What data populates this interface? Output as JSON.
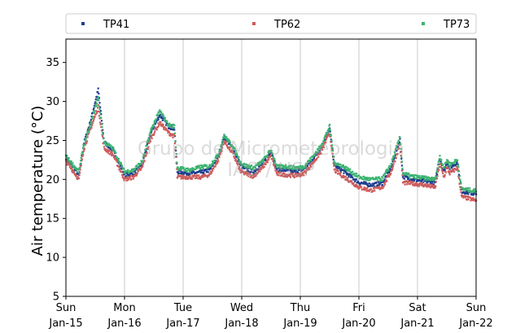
{
  "chart_data": {
    "type": "scatter",
    "ylabel": "Air temperature (°C)",
    "ylim": [
      5,
      38
    ],
    "yticks": [
      5,
      10,
      15,
      20,
      25,
      30,
      35
    ],
    "xlim": [
      0,
      7
    ],
    "xticks": [
      {
        "x": 0,
        "day": "Sun",
        "date": "Jan-15"
      },
      {
        "x": 1,
        "day": "Mon",
        "date": "Jan-16"
      },
      {
        "x": 2,
        "day": "Tue",
        "date": "Jan-17"
      },
      {
        "x": 3,
        "day": "Wed",
        "date": "Jan-18"
      },
      {
        "x": 4,
        "day": "Thu",
        "date": "Jan-19"
      },
      {
        "x": 5,
        "day": "Fri",
        "date": "Jan-20"
      },
      {
        "x": 6,
        "day": "Sat",
        "date": "Jan-21"
      },
      {
        "x": 7,
        "day": "Sun",
        "date": "Jan-22"
      }
    ],
    "grid": "vertical",
    "legend_position": "top",
    "watermark": [
      "Grupo de Micrometeorologia",
      "IAG / USP"
    ],
    "series": [
      {
        "name": "TP41",
        "color": "#1f3f8f",
        "points": [
          [
            0,
            22.8
          ],
          [
            0.15,
            21.3
          ],
          [
            0.22,
            20.5
          ],
          [
            0.3,
            24.5
          ],
          [
            0.42,
            27.5
          ],
          [
            0.55,
            31.5
          ],
          [
            0.65,
            24.8
          ],
          [
            0.8,
            23.8
          ],
          [
            1.0,
            20.6
          ],
          [
            1.15,
            20.7
          ],
          [
            1.3,
            22.0
          ],
          [
            1.45,
            26.0
          ],
          [
            1.6,
            28.3
          ],
          [
            1.75,
            26.8
          ],
          [
            1.85,
            26.5
          ],
          [
            1.9,
            21.0
          ],
          [
            2.1,
            20.8
          ],
          [
            2.3,
            20.9
          ],
          [
            2.45,
            21.2
          ],
          [
            2.6,
            23.0
          ],
          [
            2.7,
            25.5
          ],
          [
            2.85,
            24.0
          ],
          [
            2.98,
            21.8
          ],
          [
            3.05,
            21.4
          ],
          [
            3.2,
            21.0
          ],
          [
            3.35,
            22.0
          ],
          [
            3.5,
            23.6
          ],
          [
            3.6,
            21.3
          ],
          [
            3.75,
            21.2
          ],
          [
            3.9,
            21.0
          ],
          [
            4.05,
            21.3
          ],
          [
            4.2,
            22.5
          ],
          [
            4.35,
            24.0
          ],
          [
            4.5,
            26.5
          ],
          [
            4.58,
            21.8
          ],
          [
            4.75,
            21.0
          ],
          [
            5.0,
            19.6
          ],
          [
            5.2,
            19.3
          ],
          [
            5.4,
            19.5
          ],
          [
            5.55,
            21.5
          ],
          [
            5.7,
            25.2
          ],
          [
            5.75,
            20.4
          ],
          [
            5.9,
            20.0
          ],
          [
            6.1,
            19.8
          ],
          [
            6.3,
            19.6
          ],
          [
            6.38,
            22.8
          ],
          [
            6.45,
            21.0
          ],
          [
            6.5,
            22.2
          ],
          [
            6.55,
            21.5
          ],
          [
            6.68,
            22.2
          ],
          [
            6.75,
            18.5
          ],
          [
            7.0,
            18.1
          ]
        ]
      },
      {
        "name": "TP62",
        "color": "#cd5c5c",
        "points": [
          [
            0,
            22.3
          ],
          [
            0.15,
            20.8
          ],
          [
            0.22,
            20.0
          ],
          [
            0.3,
            23.8
          ],
          [
            0.42,
            26.5
          ],
          [
            0.55,
            29.3
          ],
          [
            0.65,
            24.0
          ],
          [
            0.8,
            23.2
          ],
          [
            1.0,
            20.0
          ],
          [
            1.15,
            20.3
          ],
          [
            1.3,
            21.5
          ],
          [
            1.45,
            25.3
          ],
          [
            1.6,
            27.3
          ],
          [
            1.75,
            26.0
          ],
          [
            1.85,
            25.5
          ],
          [
            1.9,
            20.3
          ],
          [
            2.1,
            20.3
          ],
          [
            2.3,
            20.3
          ],
          [
            2.45,
            20.6
          ],
          [
            2.6,
            22.5
          ],
          [
            2.7,
            24.9
          ],
          [
            2.85,
            23.3
          ],
          [
            2.98,
            21.0
          ],
          [
            3.05,
            20.8
          ],
          [
            3.2,
            20.4
          ],
          [
            3.35,
            21.5
          ],
          [
            3.5,
            23.0
          ],
          [
            3.6,
            20.7
          ],
          [
            3.75,
            20.6
          ],
          [
            3.9,
            20.5
          ],
          [
            4.05,
            20.7
          ],
          [
            4.2,
            22.0
          ],
          [
            4.35,
            23.5
          ],
          [
            4.5,
            26.0
          ],
          [
            4.58,
            21.2
          ],
          [
            4.75,
            20.3
          ],
          [
            5.0,
            19.0
          ],
          [
            5.2,
            18.6
          ],
          [
            5.4,
            19.0
          ],
          [
            5.55,
            21.0
          ],
          [
            5.7,
            24.5
          ],
          [
            5.75,
            19.6
          ],
          [
            5.9,
            19.5
          ],
          [
            6.1,
            19.3
          ],
          [
            6.3,
            19.0
          ],
          [
            6.38,
            22.0
          ],
          [
            6.45,
            20.3
          ],
          [
            6.5,
            21.5
          ],
          [
            6.55,
            20.8
          ],
          [
            6.68,
            21.5
          ],
          [
            6.75,
            17.8
          ],
          [
            7.0,
            17.3
          ]
        ]
      },
      {
        "name": "TP73",
        "color": "#3cb371",
        "points": [
          [
            0,
            23.0
          ],
          [
            0.15,
            21.6
          ],
          [
            0.22,
            21.0
          ],
          [
            0.3,
            24.3
          ],
          [
            0.42,
            27.0
          ],
          [
            0.55,
            30.5
          ],
          [
            0.65,
            24.8
          ],
          [
            0.8,
            24.0
          ],
          [
            1.0,
            21.0
          ],
          [
            1.15,
            21.2
          ],
          [
            1.3,
            22.3
          ],
          [
            1.45,
            26.3
          ],
          [
            1.6,
            28.8
          ],
          [
            1.75,
            27.0
          ],
          [
            1.85,
            26.8
          ],
          [
            1.9,
            21.5
          ],
          [
            2.1,
            21.2
          ],
          [
            2.3,
            21.6
          ],
          [
            2.45,
            21.7
          ],
          [
            2.6,
            23.2
          ],
          [
            2.7,
            25.6
          ],
          [
            2.85,
            24.2
          ],
          [
            2.98,
            22.2
          ],
          [
            3.05,
            21.8
          ],
          [
            3.2,
            21.5
          ],
          [
            3.35,
            22.3
          ],
          [
            3.5,
            23.8
          ],
          [
            3.6,
            21.6
          ],
          [
            3.75,
            21.7
          ],
          [
            3.9,
            21.5
          ],
          [
            4.05,
            21.6
          ],
          [
            4.2,
            22.8
          ],
          [
            4.35,
            24.3
          ],
          [
            4.5,
            26.8
          ],
          [
            4.58,
            22.2
          ],
          [
            4.75,
            21.6
          ],
          [
            5.0,
            20.3
          ],
          [
            5.2,
            20.0
          ],
          [
            5.4,
            20.1
          ],
          [
            5.55,
            22.0
          ],
          [
            5.7,
            25.4
          ],
          [
            5.75,
            20.8
          ],
          [
            5.9,
            20.4
          ],
          [
            6.1,
            20.2
          ],
          [
            6.3,
            20.0
          ],
          [
            6.38,
            23.0
          ],
          [
            6.45,
            21.5
          ],
          [
            6.5,
            22.5
          ],
          [
            6.55,
            21.9
          ],
          [
            6.68,
            22.5
          ],
          [
            6.75,
            18.8
          ],
          [
            7.0,
            18.5
          ]
        ]
      }
    ]
  }
}
